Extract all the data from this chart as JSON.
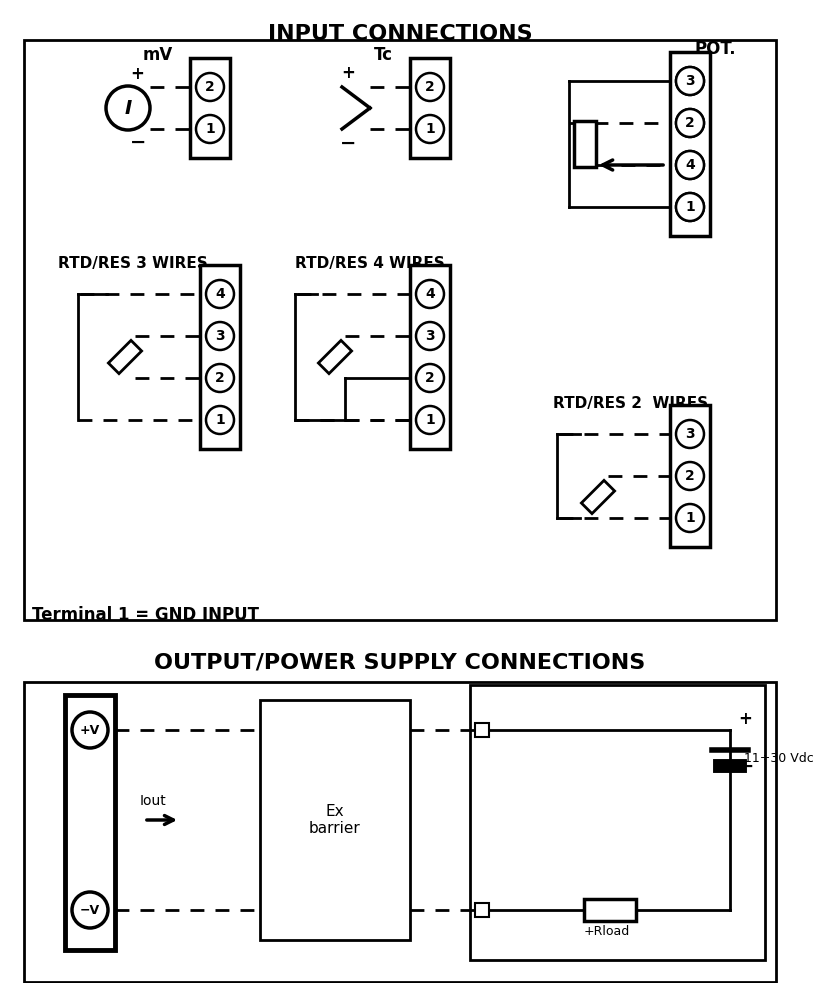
{
  "title_input": "INPUT CONNECTIONS",
  "title_output": "OUTPUT/POWER SUPPLY CONNECTIONS",
  "terminal_note": "Terminal 1 = GND INPUT",
  "labels": {
    "mV": "mV",
    "Tc": "Tc",
    "POT": "POT.",
    "RTD3": "RTD/RES 3 WIRES",
    "RTD4": "RTD/RES 4 WIRES",
    "RTD2": "RTD/RES 2  WIRES",
    "ex_barrier": "Ex\nbarrier",
    "voltage": "11÷30 Vdc",
    "rload": "Rload",
    "iout": "Iout"
  }
}
